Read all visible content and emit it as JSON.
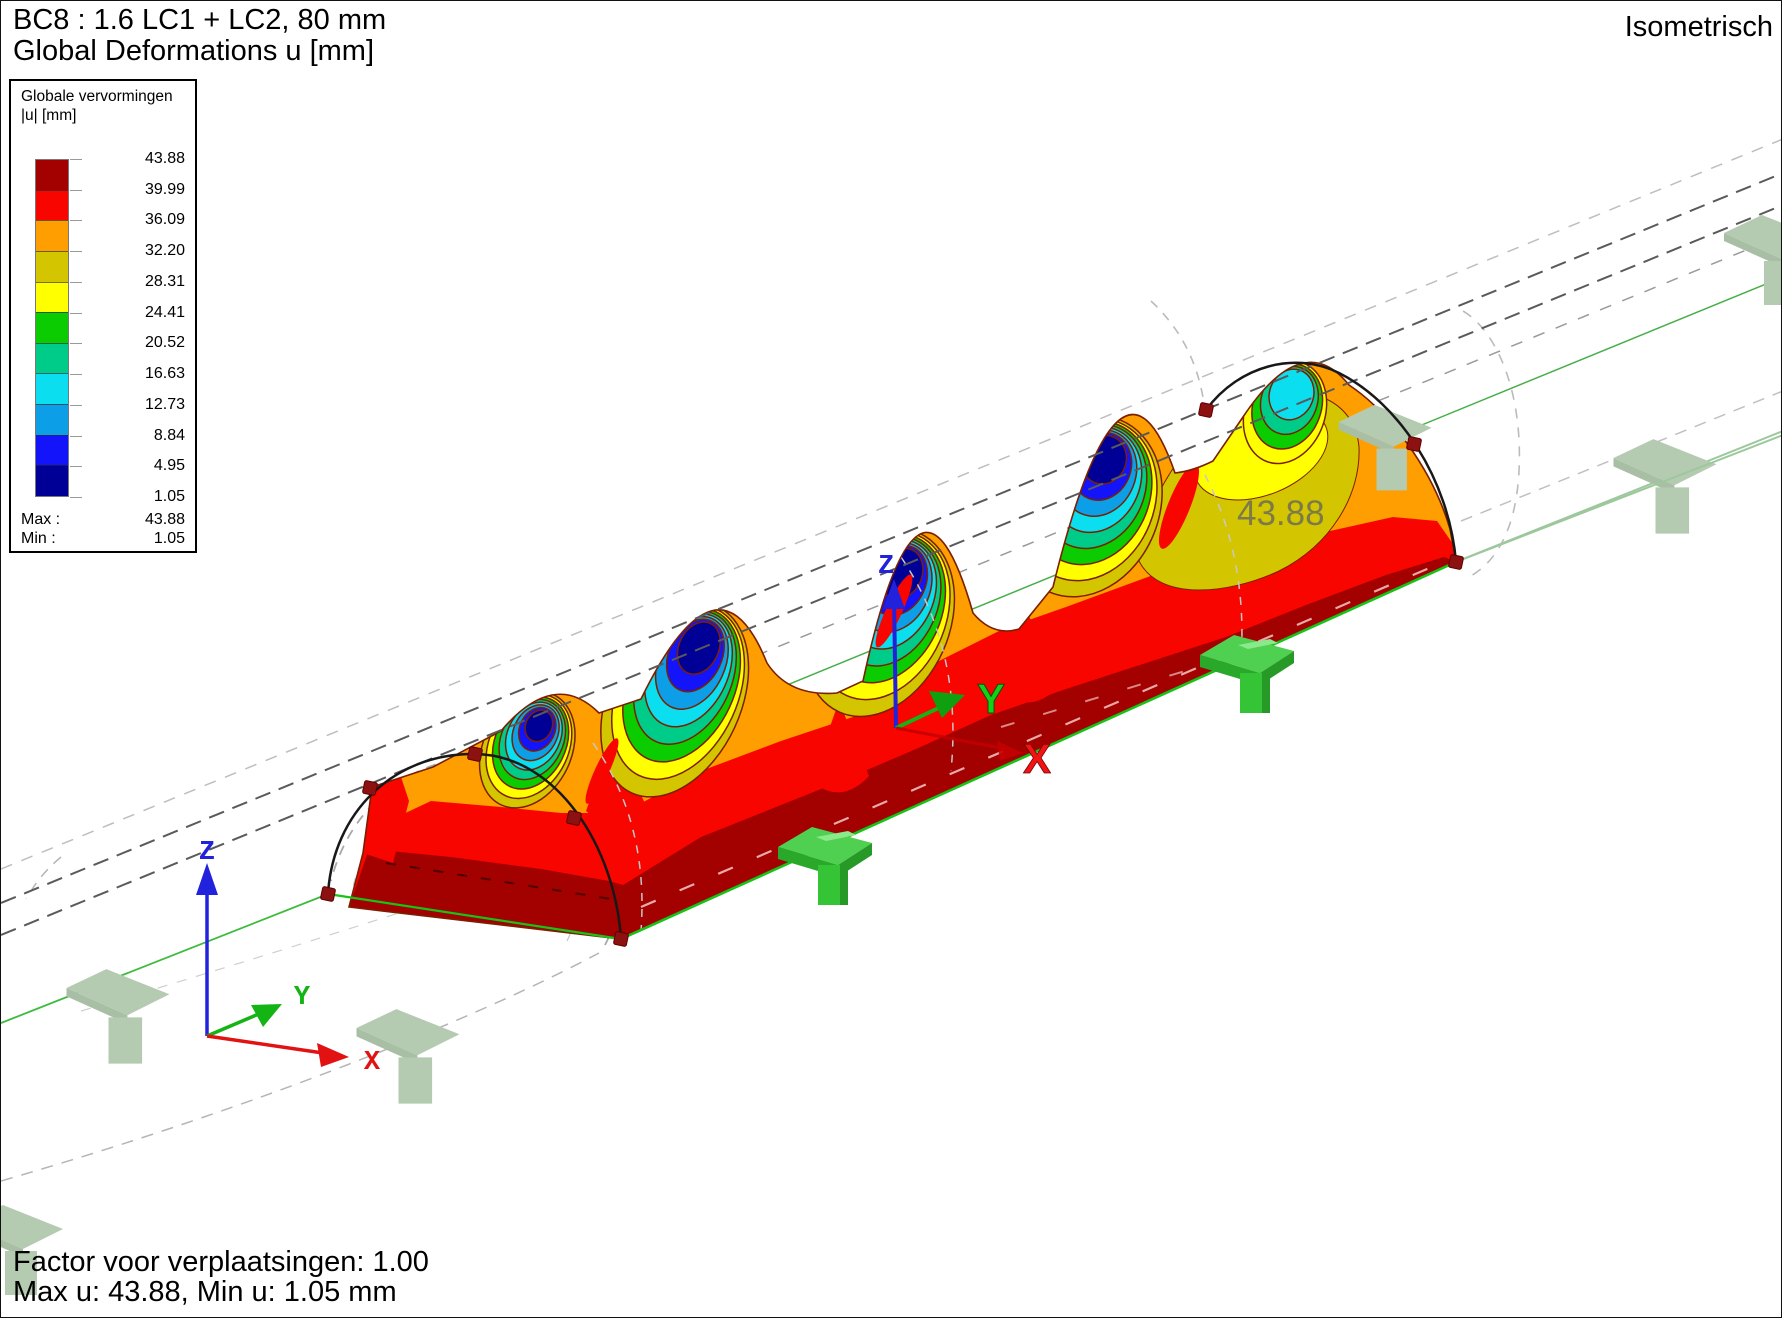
{
  "header": {
    "title_line1": "BC8 : 1.6 LC1 + LC2, 80 mm",
    "title_line2": "Global Deformations u [mm]"
  },
  "view_label": "Isometrisch",
  "legend": {
    "title_line1": "Globale vervormingen",
    "title_line2": "|u| [mm]",
    "boundary_values": [
      "43.88",
      "39.99",
      "36.09",
      "32.20",
      "28.31",
      "24.41",
      "20.52",
      "16.63",
      "12.73",
      "8.84",
      "4.95",
      "1.05"
    ],
    "band_colors": [
      "#a30000",
      "#f90500",
      "#ff9e00",
      "#d3c500",
      "#ffff00",
      "#0bcc00",
      "#00cc8a",
      "#0bdeee",
      "#0d9ee8",
      "#1414fa",
      "#000096"
    ],
    "max_label": "Max :",
    "max_value": "43.88",
    "min_label": "Min :",
    "min_value": "1.05"
  },
  "scene": {
    "max_annotation": "43.88",
    "axis_labels": {
      "x": "X",
      "y": "Y",
      "z": "Z"
    },
    "axis_colors": {
      "x": "#e21212",
      "y": "#13b413",
      "z": "#2222dd"
    },
    "contour_outline_color": "#7a1f00",
    "node_color": "#8c1212",
    "support_color": "#35c435",
    "support_color_faded": "#b5cbb1"
  },
  "footer": {
    "line1": "Factor voor verplaatsingen: 1.00",
    "line2": "Max u: 43.88, Min u: 1.05 mm"
  }
}
